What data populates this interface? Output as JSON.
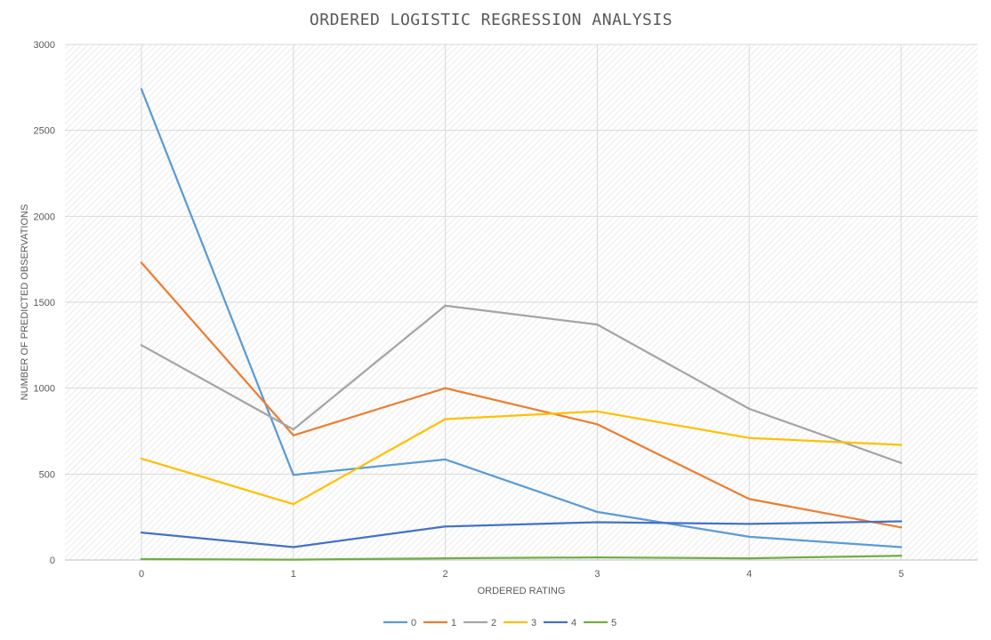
{
  "chart_data": {
    "type": "line",
    "title": "ORDERED LOGISTIC REGRESSION ANALYSIS",
    "xlabel": "ORDERED RATING",
    "ylabel": "NUMBER OF PREDICTED OBSERVATIONS",
    "categories": [
      "0",
      "1",
      "2",
      "3",
      "4",
      "5"
    ],
    "ylim": [
      0,
      3000
    ],
    "yticks": [
      0,
      500,
      1000,
      1500,
      2000,
      2500,
      3000
    ],
    "grid": true,
    "legend_position": "bottom",
    "series": [
      {
        "name": "0",
        "color": "#5B9BD5",
        "values": [
          2740,
          495,
          585,
          280,
          135,
          75
        ]
      },
      {
        "name": "1",
        "color": "#ED7D31",
        "values": [
          1730,
          725,
          1000,
          790,
          355,
          190
        ]
      },
      {
        "name": "2",
        "color": "#A5A5A5",
        "values": [
          1250,
          760,
          1480,
          1370,
          880,
          565
        ]
      },
      {
        "name": "3",
        "color": "#FFC000",
        "values": [
          590,
          325,
          820,
          865,
          710,
          670
        ]
      },
      {
        "name": "4",
        "color": "#4472C4",
        "values": [
          160,
          75,
          195,
          220,
          210,
          225
        ]
      },
      {
        "name": "5",
        "color": "#70AD47",
        "values": [
          5,
          2,
          10,
          15,
          10,
          25
        ]
      }
    ]
  }
}
